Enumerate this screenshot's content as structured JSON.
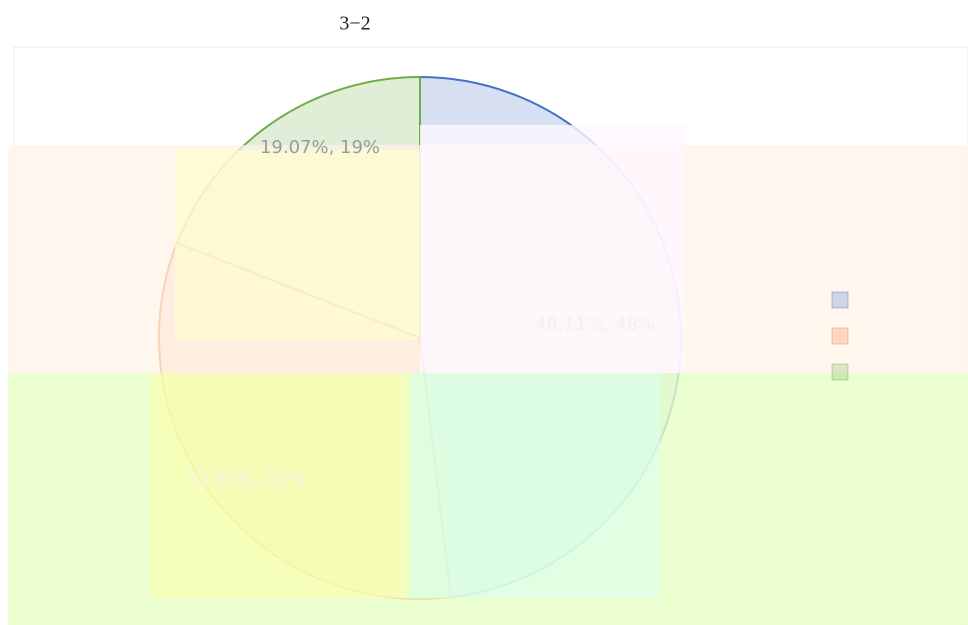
{
  "chart_data": {
    "type": "pie",
    "title": "3−2",
    "categories": [
      null,
      null,
      null
    ],
    "values": [
      48.11,
      32.82,
      19.07
    ],
    "value_labels": [
      "48.11%, 48%",
      "32.82%, 33%",
      "19.07%, 19%"
    ],
    "colors": [
      "#4472c4",
      "#ed7d31",
      "#70ad47"
    ],
    "legend": "right"
  }
}
